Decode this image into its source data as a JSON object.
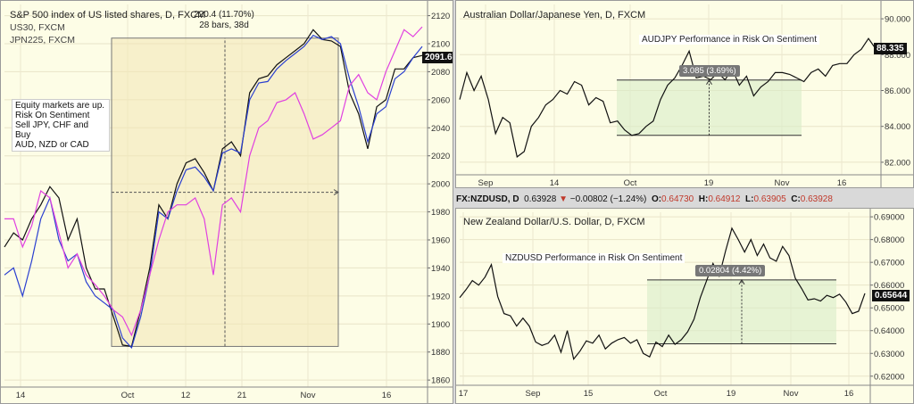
{
  "spx": {
    "title": "S&P 500 index of US listed shares, D, FXCM",
    "legend": [
      "US30, FXCM",
      "JPN225, FXCM"
    ],
    "measure_line1": "220.4 (11.70%)",
    "measure_line2": "28 bars, 38d",
    "note_lines": [
      "Equity markets are up.",
      "Risk On Sentiment",
      "Sell JPY, CHF and",
      "Buy",
      "AUD, NZD or CAD"
    ],
    "last_value": "2091.6"
  },
  "audjpy": {
    "title": "Australian Dollar/Japanese Yen, D, FXCM",
    "annotation": "AUDJPY Performance in Risk On Sentiment",
    "measure": "3.085 (3.69%)",
    "last_value": "88.335"
  },
  "nzdusd": {
    "ticker": {
      "symbol": "FX:NZDUSD, D",
      "price": "0.63928",
      "change": "−0.00802 (−1.24%)",
      "o_label": "O:",
      "o": "0.64730",
      "h_label": "H:",
      "h": "0.64912",
      "l_label": "L:",
      "l": "0.63905",
      "c_label": "C:",
      "c": "0.63928"
    },
    "title": "New Zealand Dollar/U.S. Dollar, D, FXCM",
    "annotation": "NZDUSD Performance in Risk On Sentiment",
    "measure": "0.02804 (4.42%)",
    "last_value": "0.65644"
  },
  "chart_data": [
    {
      "type": "line",
      "title": "S&P 500 index of US listed shares, D, FXCM",
      "x_ticks": [
        "14",
        "Oct",
        "12",
        "21",
        "Nov",
        "16"
      ],
      "y_ticks": [
        1860,
        1880,
        1900,
        1920,
        1940,
        1960,
        1980,
        2000,
        2020,
        2040,
        2060,
        2080,
        2100,
        2120
      ],
      "ylim": [
        1855,
        2128
      ],
      "series": [
        {
          "name": "S&P 500",
          "color": "#111111",
          "values": [
            1955,
            1965,
            1960,
            1975,
            1985,
            1998,
            1990,
            1960,
            1975,
            1940,
            1925,
            1925,
            1905,
            1885,
            1884,
            1910,
            1940,
            1985,
            1975,
            2000,
            2015,
            2018,
            2008,
            1995,
            2025,
            2030,
            2020,
            2065,
            2075,
            2077,
            2085,
            2090,
            2095,
            2100,
            2110,
            2103,
            2102,
            2098,
            2065,
            2050,
            2025,
            2055,
            2060,
            2082,
            2082,
            2090,
            2091.6
          ]
        },
        {
          "name": "US30, FXCM",
          "color": "#2a3fd0",
          "values": [
            1935,
            1940,
            1920,
            1945,
            1975,
            1990,
            1960,
            1945,
            1950,
            1930,
            1920,
            1915,
            1910,
            1890,
            1883,
            1905,
            1935,
            1980,
            1975,
            1995,
            2010,
            2012,
            2005,
            1995,
            2022,
            2025,
            2022,
            2060,
            2072,
            2073,
            2082,
            2088,
            2093,
            2098,
            2106,
            2103,
            2105,
            2100,
            2075,
            2055,
            2030,
            2050,
            2055,
            2075,
            2080,
            2090,
            2098
          ]
        },
        {
          "name": "JPN225, FXCM",
          "color": "#e040e0",
          "values": [
            1975,
            1975,
            1955,
            1970,
            1995,
            1990,
            1965,
            1940,
            1950,
            1935,
            1928,
            1920,
            1910,
            1905,
            1892,
            1910,
            1935,
            1960,
            1980,
            1985,
            1985,
            1990,
            1975,
            1935,
            1985,
            1990,
            1980,
            2020,
            2040,
            2045,
            2058,
            2060,
            2065,
            2050,
            2032,
            2035,
            2040,
            2045,
            2070,
            2078,
            2065,
            2060,
            2080,
            2095,
            2110,
            2105,
            2112
          ]
        }
      ],
      "last_value": 2091.6
    },
    {
      "type": "line",
      "title": "Australian Dollar/Japanese Yen, D, FXCM",
      "x_ticks": [
        "Sep",
        "14",
        "Oct",
        "19",
        "Nov",
        "16"
      ],
      "y_ticks": [
        82.0,
        84.0,
        86.0,
        88.0,
        90.0
      ],
      "ylim": [
        81.3,
        90.8
      ],
      "series": [
        {
          "name": "AUDJPY",
          "color": "#111111",
          "values": [
            85.5,
            87.0,
            86.0,
            86.8,
            85.5,
            83.6,
            84.5,
            84.2,
            82.3,
            82.6,
            84.0,
            84.5,
            85.2,
            85.5,
            86.0,
            85.8,
            86.5,
            86.3,
            85.2,
            85.6,
            85.4,
            84.2,
            84.3,
            83.8,
            83.5,
            83.6,
            84.0,
            84.3,
            85.5,
            86.3,
            86.7,
            87.4,
            88.2,
            86.7,
            86.8,
            86.6,
            87.0,
            86.6,
            87.2,
            86.3,
            86.8,
            85.7,
            86.2,
            86.5,
            87.0,
            87.0,
            86.9,
            86.7,
            86.5,
            87.0,
            87.2,
            86.8,
            87.4,
            87.5,
            87.5,
            88.0,
            88.3,
            88.9,
            88.335
          ]
        }
      ],
      "last_value": 88.335,
      "measure_range": [
        83.5,
        86.585
      ]
    },
    {
      "type": "line",
      "title": "New Zealand Dollar/U.S. Dollar, D, FXCM",
      "x_ticks": [
        "17",
        "Sep",
        "15",
        "Oct",
        "19",
        "Nov",
        "16"
      ],
      "y_ticks": [
        0.62,
        0.63,
        0.64,
        0.65,
        0.66,
        0.67,
        0.68,
        0.69
      ],
      "ylim": [
        0.616,
        0.692
      ],
      "series": [
        {
          "name": "NZDUSD",
          "color": "#111111",
          "values": [
            0.6545,
            0.658,
            0.662,
            0.66,
            0.6635,
            0.669,
            0.655,
            0.6475,
            0.6465,
            0.642,
            0.6455,
            0.642,
            0.635,
            0.6335,
            0.6345,
            0.638,
            0.6305,
            0.64,
            0.6275,
            0.631,
            0.6355,
            0.6345,
            0.638,
            0.632,
            0.6345,
            0.636,
            0.637,
            0.6345,
            0.636,
            0.63,
            0.6285,
            0.635,
            0.633,
            0.638,
            0.634,
            0.636,
            0.6395,
            0.645,
            0.6545,
            0.662,
            0.6695,
            0.664,
            0.675,
            0.685,
            0.68,
            0.6745,
            0.68,
            0.673,
            0.678,
            0.672,
            0.6705,
            0.677,
            0.673,
            0.663,
            0.6585,
            0.6535,
            0.654,
            0.653,
            0.6555,
            0.6545,
            0.656,
            0.6525,
            0.6475,
            0.6485,
            0.6564
          ]
        }
      ],
      "last_value": 0.65644,
      "measure_range": [
        0.63424,
        0.66228
      ]
    }
  ]
}
